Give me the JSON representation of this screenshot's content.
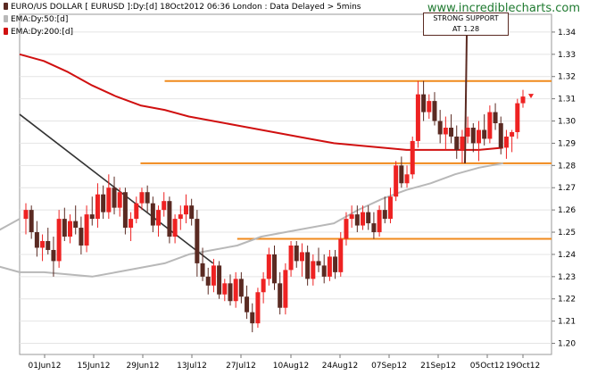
{
  "header": {
    "title": "EURO/US DOLLAR [ EURUSD ]:Dy:[d]  18Oct2012 06:36 London : Data Delayed > 5mins",
    "watermark": "www.incrediblecharts.com"
  },
  "legend": [
    {
      "label": "EMA:Dy:50:[d]",
      "color": "#b8b8b8"
    },
    {
      "label": "EMA:Dy:200:[d]",
      "color": "#d01010"
    }
  ],
  "annotation": {
    "line1": "STRONG SUPPORT",
    "line2": "AT 1.28"
  },
  "colors": {
    "up_candle": "#ee2222",
    "down_candle": "#5a2a22",
    "ema50": "#b8b8b8",
    "ema200": "#d01010",
    "trendline": "#333333",
    "support": "#f08a1c"
  },
  "chart_data": {
    "type": "candlestick",
    "ylim": [
      1.195,
      1.348
    ],
    "yticks": [
      "1.20",
      "1.21",
      "1.22",
      "1.23",
      "1.24",
      "1.25",
      "1.26",
      "1.27",
      "1.28",
      "1.29",
      "1.30",
      "1.31",
      "1.32",
      "1.33",
      "1.34"
    ],
    "xticks": [
      "01Jun12",
      "15Jun12",
      "29Jun12",
      "13Jul12",
      "27Jul12",
      "10Aug12",
      "24Aug12",
      "07Sep12",
      "21Sep12",
      "05Oct12",
      "19Oct12"
    ],
    "candles": [
      [
        1.256,
        1.263,
        1.249,
        1.26
      ],
      [
        1.26,
        1.262,
        1.247,
        1.25
      ],
      [
        1.25,
        1.255,
        1.239,
        1.243
      ],
      [
        1.243,
        1.249,
        1.237,
        1.246
      ],
      [
        1.246,
        1.252,
        1.24,
        1.242
      ],
      [
        1.242,
        1.248,
        1.23,
        1.237
      ],
      [
        1.237,
        1.26,
        1.234,
        1.256
      ],
      [
        1.256,
        1.261,
        1.246,
        1.248
      ],
      [
        1.248,
        1.258,
        1.245,
        1.255
      ],
      [
        1.255,
        1.262,
        1.249,
        1.252
      ],
      [
        1.252,
        1.257,
        1.24,
        1.244
      ],
      [
        1.244,
        1.262,
        1.241,
        1.258
      ],
      [
        1.258,
        1.266,
        1.253,
        1.256
      ],
      [
        1.256,
        1.272,
        1.252,
        1.267
      ],
      [
        1.267,
        1.271,
        1.256,
        1.259
      ],
      [
        1.259,
        1.276,
        1.256,
        1.27
      ],
      [
        1.27,
        1.275,
        1.258,
        1.261
      ],
      [
        1.261,
        1.27,
        1.257,
        1.268
      ],
      [
        1.268,
        1.27,
        1.249,
        1.252
      ],
      [
        1.252,
        1.259,
        1.246,
        1.256
      ],
      [
        1.256,
        1.266,
        1.254,
        1.263
      ],
      [
        1.263,
        1.27,
        1.26,
        1.268
      ],
      [
        1.268,
        1.271,
        1.259,
        1.263
      ],
      [
        1.263,
        1.266,
        1.25,
        1.253
      ],
      [
        1.253,
        1.262,
        1.248,
        1.26
      ],
      [
        1.26,
        1.268,
        1.257,
        1.264
      ],
      [
        1.264,
        1.266,
        1.245,
        1.248
      ],
      [
        1.248,
        1.258,
        1.245,
        1.256
      ],
      [
        1.256,
        1.262,
        1.251,
        1.258
      ],
      [
        1.258,
        1.267,
        1.254,
        1.262
      ],
      [
        1.262,
        1.265,
        1.253,
        1.256
      ],
      [
        1.256,
        1.26,
        1.23,
        1.236
      ],
      [
        1.236,
        1.243,
        1.228,
        1.23
      ],
      [
        1.23,
        1.234,
        1.222,
        1.226
      ],
      [
        1.226,
        1.238,
        1.223,
        1.235
      ],
      [
        1.235,
        1.237,
        1.22,
        1.222
      ],
      [
        1.222,
        1.229,
        1.219,
        1.227
      ],
      [
        1.227,
        1.231,
        1.217,
        1.219
      ],
      [
        1.219,
        1.232,
        1.216,
        1.229
      ],
      [
        1.229,
        1.232,
        1.218,
        1.221
      ],
      [
        1.221,
        1.226,
        1.211,
        1.214
      ],
      [
        1.214,
        1.218,
        1.205,
        1.209
      ],
      [
        1.209,
        1.225,
        1.207,
        1.223
      ],
      [
        1.223,
        1.232,
        1.218,
        1.229
      ],
      [
        1.229,
        1.243,
        1.226,
        1.24
      ],
      [
        1.24,
        1.244,
        1.224,
        1.227
      ],
      [
        1.227,
        1.232,
        1.213,
        1.216
      ],
      [
        1.216,
        1.236,
        1.213,
        1.233
      ],
      [
        1.233,
        1.246,
        1.23,
        1.244
      ],
      [
        1.244,
        1.246,
        1.234,
        1.237
      ],
      [
        1.237,
        1.245,
        1.23,
        1.241
      ],
      [
        1.241,
        1.244,
        1.226,
        1.229
      ],
      [
        1.229,
        1.24,
        1.226,
        1.237
      ],
      [
        1.237,
        1.243,
        1.232,
        1.235
      ],
      [
        1.235,
        1.24,
        1.227,
        1.23
      ],
      [
        1.23,
        1.242,
        1.228,
        1.239
      ],
      [
        1.239,
        1.242,
        1.229,
        1.232
      ],
      [
        1.232,
        1.25,
        1.23,
        1.247
      ],
      [
        1.247,
        1.259,
        1.244,
        1.256
      ],
      [
        1.256,
        1.262,
        1.252,
        1.258
      ],
      [
        1.258,
        1.262,
        1.25,
        1.253
      ],
      [
        1.253,
        1.262,
        1.251,
        1.259
      ],
      [
        1.259,
        1.262,
        1.251,
        1.254
      ],
      [
        1.254,
        1.259,
        1.247,
        1.25
      ],
      [
        1.25,
        1.262,
        1.248,
        1.26
      ],
      [
        1.26,
        1.266,
        1.254,
        1.256
      ],
      [
        1.256,
        1.27,
        1.254,
        1.266
      ],
      [
        1.266,
        1.282,
        1.264,
        1.28
      ],
      [
        1.28,
        1.284,
        1.27,
        1.272
      ],
      [
        1.272,
        1.28,
        1.27,
        1.276
      ],
      [
        1.276,
        1.293,
        1.274,
        1.291
      ],
      [
        1.291,
        1.318,
        1.288,
        1.312
      ],
      [
        1.312,
        1.318,
        1.3,
        1.304
      ],
      [
        1.304,
        1.312,
        1.301,
        1.309
      ],
      [
        1.309,
        1.313,
        1.298,
        1.3
      ],
      [
        1.3,
        1.305,
        1.29,
        1.294
      ],
      [
        1.294,
        1.302,
        1.287,
        1.297
      ],
      [
        1.297,
        1.303,
        1.29,
        1.293
      ],
      [
        1.293,
        1.298,
        1.283,
        1.287
      ],
      [
        1.287,
        1.296,
        1.281,
        1.293
      ],
      [
        1.293,
        1.302,
        1.29,
        1.297
      ],
      [
        1.297,
        1.299,
        1.286,
        1.29
      ],
      [
        1.29,
        1.3,
        1.282,
        1.296
      ],
      [
        1.296,
        1.303,
        1.289,
        1.292
      ],
      [
        1.292,
        1.307,
        1.29,
        1.304
      ],
      [
        1.304,
        1.308,
        1.296,
        1.299
      ],
      [
        1.299,
        1.302,
        1.285,
        1.288
      ],
      [
        1.288,
        1.296,
        1.283,
        1.293
      ],
      [
        1.293,
        1.296,
        1.286,
        1.295
      ],
      [
        1.295,
        1.31,
        1.292,
        1.308
      ],
      [
        1.308,
        1.314,
        1.306,
        1.311
      ]
    ],
    "ema50": [
      [
        1.296,
        1.256
      ],
      [
        1.295,
        1.25
      ],
      [
        1.295,
        1.246
      ],
      [
        1.294,
        1.242
      ],
      [
        1.293,
        1.239
      ],
      [
        1.294,
        1.237
      ],
      [
        1.295,
        1.235
      ],
      [
        1.296,
        1.232
      ],
      [
        1.297,
        1.232
      ],
      [
        1.299,
        1.23
      ],
      [
        1.3,
        1.232
      ],
      [
        1.301,
        1.234
      ],
      [
        1.302,
        1.236
      ],
      [
        1.303,
        1.24
      ],
      [
        1.305,
        1.244
      ],
      [
        1.306,
        1.248
      ],
      [
        1.307,
        1.25
      ],
      [
        1.309,
        1.254
      ],
      [
        1.31,
        1.26
      ],
      [
        1.311,
        1.265
      ],
      [
        1.312,
        1.269
      ],
      [
        1.313,
        1.272
      ],
      [
        1.314,
        1.276
      ],
      [
        1.315,
        1.279
      ],
      [
        1.316,
        1.281
      ]
    ],
    "ema200": [
      [
        1.296,
        1.33
      ],
      [
        1.297,
        1.327
      ],
      [
        1.298,
        1.322
      ],
      [
        1.299,
        1.316
      ],
      [
        1.3,
        1.311
      ],
      [
        1.301,
        1.307
      ],
      [
        1.302,
        1.305
      ],
      [
        1.303,
        1.302
      ],
      [
        1.304,
        1.3
      ],
      [
        1.305,
        1.298
      ],
      [
        1.306,
        1.296
      ],
      [
        1.307,
        1.294
      ],
      [
        1.308,
        1.292
      ],
      [
        1.309,
        1.29
      ],
      [
        1.31,
        1.289
      ],
      [
        1.311,
        1.288
      ],
      [
        1.312,
        1.287
      ],
      [
        1.313,
        1.287
      ],
      [
        1.314,
        1.287
      ],
      [
        1.315,
        1.287
      ],
      [
        1.316,
        1.288
      ]
    ],
    "trendline": [
      [
        1.296,
        1.303
      ],
      [
        1.304,
        1.236
      ]
    ],
    "support_lines": [
      {
        "y": 1.318,
        "x1": 1.302,
        "x2": 1.318
      },
      {
        "y": 1.281,
        "x1": 1.301,
        "x2": 1.318
      },
      {
        "y": 1.247,
        "x1": 1.305,
        "x2": 1.318
      }
    ]
  }
}
